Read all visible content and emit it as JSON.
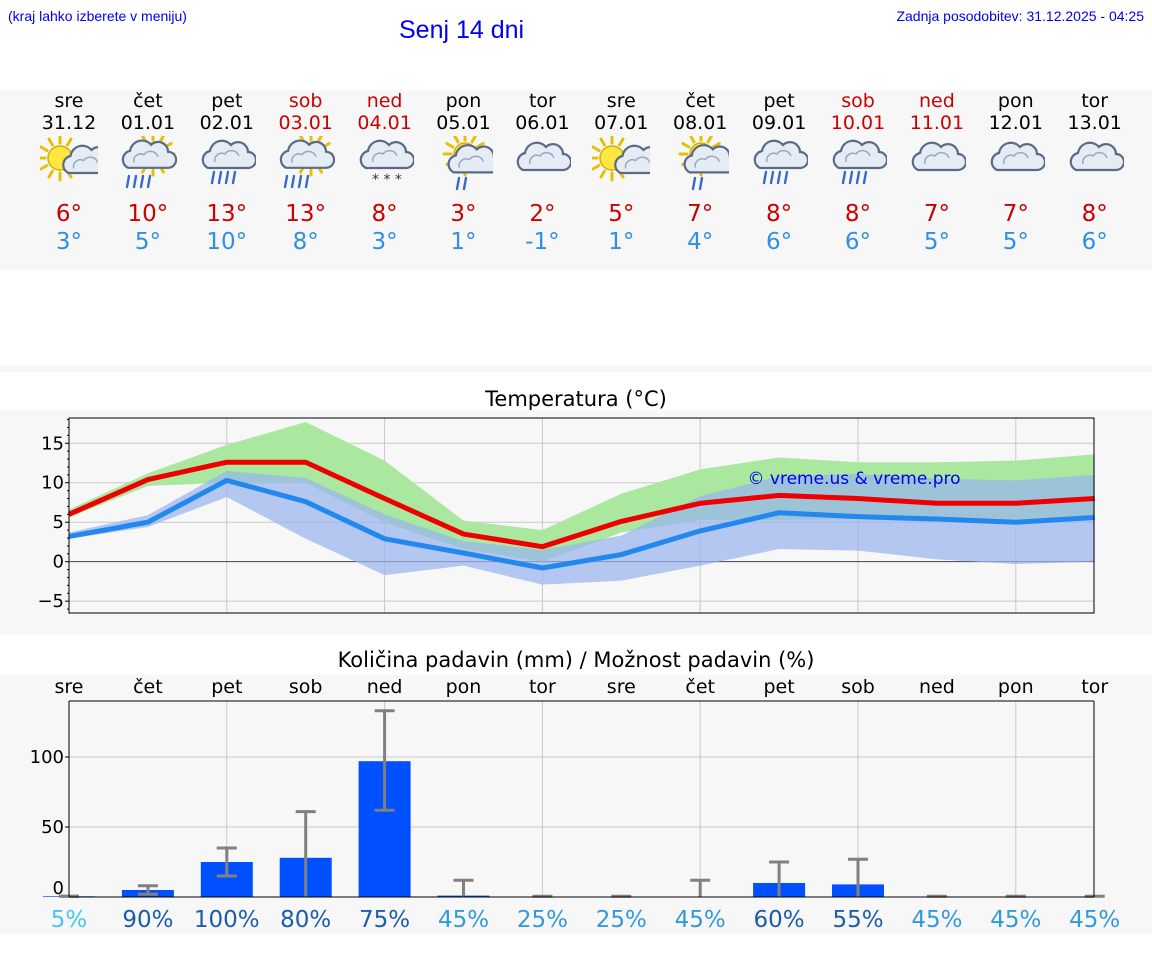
{
  "header": {
    "location_hint": "(kraj lahko izberete v meniju)",
    "title": "Senj 14 dni",
    "updated": "Zadnja posodobitev: 31.12.2025 - 04:25"
  },
  "days": [
    {
      "name": "sre",
      "date": "31.12",
      "weekend": false,
      "icon": "sun-cloud-icon",
      "tmax": "6°",
      "tmin": "3°"
    },
    {
      "name": "čet",
      "date": "01.01",
      "weekend": false,
      "icon": "sun-cloud-rain-icon",
      "tmax": "10°",
      "tmin": "5°"
    },
    {
      "name": "pet",
      "date": "02.01",
      "weekend": false,
      "icon": "cloud-rain-icon",
      "tmax": "13°",
      "tmin": "10°"
    },
    {
      "name": "sob",
      "date": "03.01",
      "weekend": true,
      "icon": "sun-cloud-rain-icon",
      "tmax": "13°",
      "tmin": "8°"
    },
    {
      "name": "ned",
      "date": "04.01",
      "weekend": true,
      "icon": "cloud-snow-icon",
      "tmax": "8°",
      "tmin": "3°"
    },
    {
      "name": "pon",
      "date": "05.01",
      "weekend": false,
      "icon": "sun-cloud-light-rain-icon",
      "tmax": "3°",
      "tmin": "1°"
    },
    {
      "name": "tor",
      "date": "06.01",
      "weekend": false,
      "icon": "cloud-icon",
      "tmax": "2°",
      "tmin": "-1°"
    },
    {
      "name": "sre",
      "date": "07.01",
      "weekend": false,
      "icon": "sun-cloud-icon",
      "tmax": "5°",
      "tmin": "1°"
    },
    {
      "name": "čet",
      "date": "08.01",
      "weekend": false,
      "icon": "sun-cloud-light-rain-icon",
      "tmax": "7°",
      "tmin": "4°"
    },
    {
      "name": "pet",
      "date": "09.01",
      "weekend": false,
      "icon": "cloud-rain-icon",
      "tmax": "8°",
      "tmin": "6°"
    },
    {
      "name": "sob",
      "date": "10.01",
      "weekend": true,
      "icon": "cloud-rain-icon",
      "tmax": "8°",
      "tmin": "6°"
    },
    {
      "name": "ned",
      "date": "11.01",
      "weekend": true,
      "icon": "cloud-icon",
      "tmax": "7°",
      "tmin": "5°"
    },
    {
      "name": "pon",
      "date": "12.01",
      "weekend": false,
      "icon": "cloud-icon",
      "tmax": "7°",
      "tmin": "5°"
    },
    {
      "name": "tor",
      "date": "13.01",
      "weekend": false,
      "icon": "cloud-icon",
      "tmax": "8°",
      "tmin": "6°"
    }
  ],
  "colors": {
    "max_line": "#ee0000",
    "min_line": "#2288ee",
    "max_band": "#aae8a0",
    "min_band": "#99b4ee",
    "overlap_band": "#80c4aa",
    "bar": "#0050ff",
    "weekend": "#cc0000",
    "watermark": "#0000ee"
  },
  "chart_data": [
    {
      "type": "line",
      "title": "Temperatura (°C)",
      "watermark": "© vreme.us & vreme.pro",
      "ylim": [
        -6.5,
        18.2
      ],
      "yticks": [
        -5,
        0,
        5,
        10,
        15
      ],
      "ytick_labels": [
        "−5",
        "0",
        "5",
        "10",
        "15"
      ],
      "x": [
        0,
        1,
        2,
        3,
        4,
        5,
        6,
        7,
        8,
        9,
        10,
        11,
        12,
        13
      ],
      "series": [
        {
          "name": "max",
          "values": [
            6.0,
            10.4,
            12.6,
            12.6,
            8.0,
            3.5,
            1.9,
            5.1,
            7.4,
            8.4,
            8.0,
            7.4,
            7.4,
            8.0
          ]
        },
        {
          "name": "min",
          "values": [
            3.2,
            5.0,
            10.3,
            7.6,
            2.9,
            1.1,
            -0.8,
            0.9,
            3.9,
            6.2,
            5.7,
            5.4,
            5.0,
            5.6
          ]
        }
      ],
      "max_band": {
        "low": [
          5.6,
          9.6,
          10.0,
          10.0,
          5.0,
          1.6,
          0.0,
          3.7,
          5.3,
          5.3,
          5.4,
          5.0,
          4.8,
          5.5
        ],
        "high": [
          6.6,
          11.2,
          14.8,
          17.7,
          12.8,
          5.2,
          4.0,
          8.6,
          11.7,
          13.2,
          12.6,
          12.6,
          12.8,
          13.6
        ]
      },
      "min_band": {
        "low": [
          2.9,
          4.4,
          8.2,
          2.9,
          -1.7,
          -0.5,
          -2.9,
          -2.4,
          -0.5,
          1.6,
          1.4,
          0.3,
          -0.3,
          0.0
        ],
        "high": [
          3.7,
          5.9,
          11.5,
          10.6,
          6.0,
          2.6,
          1.5,
          3.3,
          8.3,
          10.8,
          11.1,
          10.5,
          10.3,
          11.0
        ]
      }
    },
    {
      "type": "bar",
      "title": "Količina padavin (mm) / Možnost padavin (%)",
      "categories": [
        "sre",
        "čet",
        "pet",
        "sob",
        "ned",
        "pon",
        "tor",
        "sre",
        "čet",
        "pet",
        "sob",
        "ned",
        "pon",
        "tor"
      ],
      "values": [
        0.5,
        5,
        25,
        28,
        97,
        1,
        0,
        0,
        0,
        10,
        9,
        0,
        0,
        0
      ],
      "error_high": [
        0.5,
        8,
        35,
        61,
        133,
        12,
        0.5,
        0.5,
        12,
        25,
        27,
        0.5,
        0.5,
        0.5
      ],
      "error_low": [
        0.5,
        2,
        15,
        0,
        62,
        0,
        0,
        0,
        0,
        0,
        0,
        0,
        0,
        0
      ],
      "ylim": [
        0,
        140
      ],
      "yticks": [
        0,
        50,
        100
      ],
      "ytick_labels": [
        "0",
        "50",
        "100"
      ],
      "probability_labels": [
        "5%",
        "90%",
        "100%",
        "80%",
        "75%",
        "45%",
        "25%",
        "25%",
        "45%",
        "60%",
        "55%",
        "45%",
        "45%",
        "45%"
      ],
      "probability_colors": [
        "#44c8ee",
        "#1a5eaa",
        "#1a5eaa",
        "#1a5eaa",
        "#1a5eaa",
        "#3399dd",
        "#3399dd",
        "#3399dd",
        "#3399dd",
        "#1a5eaa",
        "#1a5eaa",
        "#3399dd",
        "#3399dd",
        "#3399dd"
      ]
    }
  ]
}
